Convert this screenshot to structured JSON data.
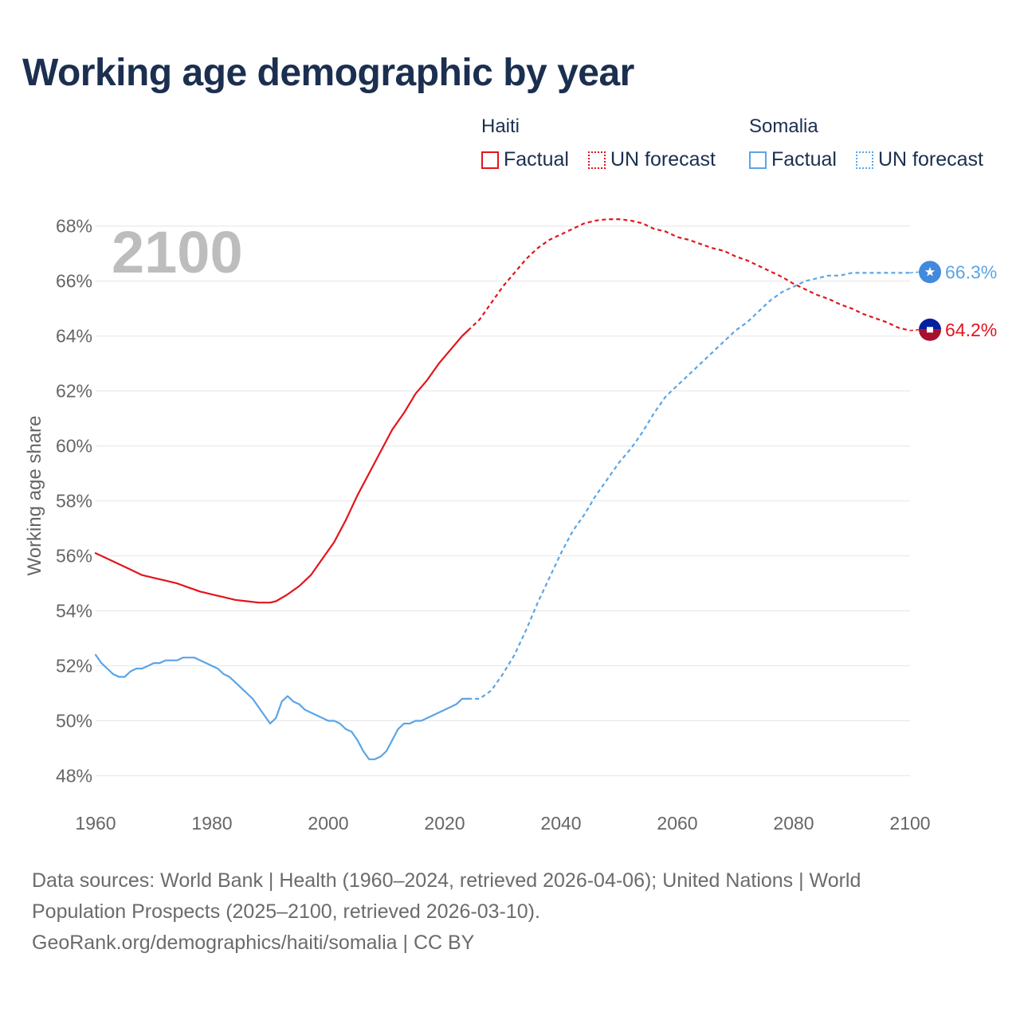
{
  "chart_data": {
    "type": "line",
    "title": "Working age demographic by year",
    "ylabel": "Working age share",
    "xlabel": "",
    "current_year_label": "2100",
    "xlim": [
      1960,
      2100
    ],
    "ylim": [
      47,
      69.5
    ],
    "x_ticks": [
      "1960",
      "1980",
      "2000",
      "2020",
      "2040",
      "2060",
      "2080",
      "2100"
    ],
    "y_ticks": [
      "48%",
      "50%",
      "52%",
      "54%",
      "56%",
      "58%",
      "60%",
      "62%",
      "64%",
      "66%",
      "68%"
    ],
    "legend": {
      "groups": [
        {
          "title": "Haiti",
          "factual": "Factual",
          "forecast": "UN forecast",
          "color": "#e3141b"
        },
        {
          "title": "Somalia",
          "factual": "Factual",
          "forecast": "UN forecast",
          "color": "#5aa5e6"
        }
      ]
    },
    "series": [
      {
        "name": "Haiti",
        "color": "#e3141b",
        "end_label": "64.2%",
        "flag_icon": "haiti-flag-icon",
        "factual": {
          "x": [
            1960,
            1962,
            1964,
            1966,
            1968,
            1970,
            1972,
            1974,
            1976,
            1978,
            1980,
            1982,
            1984,
            1986,
            1988,
            1990,
            1991,
            1993,
            1995,
            1997,
            1999,
            2001,
            2003,
            2005,
            2007,
            2009,
            2011,
            2013,
            2015,
            2017,
            2019,
            2021,
            2023,
            2024
          ],
          "y": [
            56.1,
            55.9,
            55.7,
            55.5,
            55.3,
            55.2,
            55.1,
            55.0,
            54.85,
            54.7,
            54.6,
            54.5,
            54.4,
            54.35,
            54.3,
            54.3,
            54.35,
            54.6,
            54.9,
            55.3,
            55.9,
            56.5,
            57.3,
            58.2,
            59.0,
            59.8,
            60.6,
            61.2,
            61.9,
            62.4,
            63.0,
            63.5,
            64.0,
            64.2
          ]
        },
        "forecast": {
          "x": [
            2024,
            2026,
            2028,
            2030,
            2032,
            2034,
            2036,
            2038,
            2040,
            2042,
            2044,
            2046,
            2048,
            2050,
            2052,
            2054,
            2056,
            2058,
            2060,
            2062,
            2064,
            2066,
            2068,
            2070,
            2072,
            2074,
            2076,
            2078,
            2080,
            2082,
            2084,
            2086,
            2088,
            2090,
            2092,
            2094,
            2096,
            2098,
            2100
          ],
          "y": [
            64.2,
            64.6,
            65.2,
            65.8,
            66.3,
            66.8,
            67.2,
            67.5,
            67.7,
            67.9,
            68.1,
            68.2,
            68.25,
            68.25,
            68.2,
            68.1,
            67.9,
            67.8,
            67.6,
            67.5,
            67.35,
            67.2,
            67.1,
            66.9,
            66.75,
            66.55,
            66.35,
            66.15,
            65.9,
            65.7,
            65.5,
            65.35,
            65.15,
            65.0,
            64.8,
            64.65,
            64.5,
            64.3,
            64.2
          ]
        }
      },
      {
        "name": "Somalia",
        "color": "#5aa5e6",
        "end_label": "66.3%",
        "flag_icon": "somalia-flag-icon",
        "factual": {
          "x": [
            1960,
            1961,
            1962,
            1963,
            1964,
            1965,
            1966,
            1967,
            1968,
            1969,
            1970,
            1971,
            1972,
            1973,
            1974,
            1975,
            1976,
            1977,
            1978,
            1979,
            1980,
            1981,
            1982,
            1983,
            1984,
            1985,
            1986,
            1987,
            1988,
            1989,
            1990,
            1991,
            1992,
            1993,
            1994,
            1995,
            1996,
            1998,
            2000,
            2001,
            2002,
            2003,
            2004,
            2005,
            2006,
            2007,
            2008,
            2009,
            2010,
            2011,
            2012,
            2013,
            2014,
            2015,
            2016,
            2018,
            2020,
            2022,
            2023,
            2024
          ],
          "y": [
            52.4,
            52.1,
            51.9,
            51.7,
            51.6,
            51.6,
            51.8,
            51.9,
            51.9,
            52.0,
            52.1,
            52.1,
            52.2,
            52.2,
            52.2,
            52.3,
            52.3,
            52.3,
            52.2,
            52.1,
            52.0,
            51.9,
            51.7,
            51.6,
            51.4,
            51.2,
            51.0,
            50.8,
            50.5,
            50.2,
            49.9,
            50.1,
            50.7,
            50.9,
            50.7,
            50.6,
            50.4,
            50.2,
            50.0,
            50.0,
            49.9,
            49.7,
            49.6,
            49.3,
            48.9,
            48.6,
            48.6,
            48.7,
            48.9,
            49.3,
            49.7,
            49.9,
            49.9,
            50.0,
            50.0,
            50.2,
            50.4,
            50.6,
            50.8,
            50.8
          ]
        },
        "forecast": {
          "x": [
            2024,
            2026,
            2028,
            2030,
            2032,
            2034,
            2036,
            2038,
            2040,
            2042,
            2044,
            2046,
            2048,
            2050,
            2052,
            2054,
            2056,
            2058,
            2060,
            2062,
            2064,
            2066,
            2068,
            2070,
            2072,
            2074,
            2076,
            2078,
            2080,
            2082,
            2084,
            2086,
            2088,
            2090,
            2092,
            2094,
            2096,
            2098,
            2100
          ],
          "y": [
            50.8,
            50.8,
            51.1,
            51.7,
            52.4,
            53.3,
            54.3,
            55.2,
            56.1,
            56.9,
            57.5,
            58.2,
            58.8,
            59.4,
            59.9,
            60.5,
            61.2,
            61.8,
            62.2,
            62.6,
            63.0,
            63.4,
            63.8,
            64.2,
            64.5,
            64.9,
            65.3,
            65.6,
            65.8,
            66.0,
            66.1,
            66.2,
            66.2,
            66.3,
            66.3,
            66.3,
            66.3,
            66.3,
            66.3
          ]
        }
      }
    ]
  },
  "footer": {
    "line1": "Data sources: World Bank | Health (1960–2024, retrieved 2026-04-06); United Nations | World",
    "line2": "Population Prospects (2025–2100, retrieved 2026-03-10).",
    "line3": "GeoRank.org/demographics/haiti/somalia | CC BY"
  }
}
